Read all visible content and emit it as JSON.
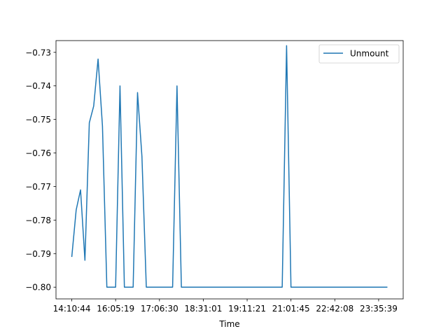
{
  "chart_data": {
    "type": "line",
    "title": "",
    "xlabel": "Time",
    "ylabel": "",
    "x_tick_labels": [
      "14:10:44",
      "16:05:19",
      "17:06:30",
      "18:31:01",
      "19:11:21",
      "21:01:45",
      "22:42:08",
      "23:35:39"
    ],
    "y_ticks": [
      -0.8,
      -0.79,
      -0.78,
      -0.77,
      -0.76,
      -0.75,
      -0.74,
      -0.73
    ],
    "y_tick_labels": [
      "−0.80",
      "−0.79",
      "−0.78",
      "−0.77",
      "−0.76",
      "−0.75",
      "−0.74",
      "−0.73"
    ],
    "ylim": [
      -0.8035,
      -0.7265
    ],
    "xlim": [
      -3.6,
      75.6
    ],
    "grid": false,
    "legend_position": "upper right",
    "series": [
      {
        "name": "Unmount",
        "color": "#1f77b4",
        "x": [
          0,
          1,
          2,
          3,
          4,
          5,
          6,
          7,
          8,
          9,
          10,
          11,
          12,
          13,
          14,
          15,
          16,
          17,
          18,
          19,
          20,
          21,
          22,
          23,
          24,
          25,
          26,
          27,
          28,
          29,
          30,
          31,
          32,
          33,
          34,
          35,
          36,
          37,
          38,
          39,
          40,
          41,
          42,
          43,
          44,
          45,
          46,
          47,
          48,
          49,
          50,
          51,
          52,
          53,
          54,
          55,
          56,
          57,
          58,
          59,
          60,
          61,
          62,
          63,
          64,
          65,
          66,
          67,
          68,
          69,
          70,
          71,
          72
        ],
        "values": [
          -0.791,
          -0.777,
          -0.771,
          -0.792,
          -0.751,
          -0.746,
          -0.732,
          -0.752,
          -0.8,
          -0.8,
          -0.8,
          -0.74,
          -0.8,
          -0.8,
          -0.8,
          -0.742,
          -0.761,
          -0.8,
          -0.8,
          -0.8,
          -0.8,
          -0.8,
          -0.8,
          -0.8,
          -0.74,
          -0.8,
          -0.8,
          -0.8,
          -0.8,
          -0.8,
          -0.8,
          -0.8,
          -0.8,
          -0.8,
          -0.8,
          -0.8,
          -0.8,
          -0.8,
          -0.8,
          -0.8,
          -0.8,
          -0.8,
          -0.8,
          -0.8,
          -0.8,
          -0.8,
          -0.8,
          -0.8,
          -0.8,
          -0.728,
          -0.8,
          -0.8,
          -0.8,
          -0.8,
          -0.8,
          -0.8,
          -0.8,
          -0.8,
          -0.8,
          -0.8,
          -0.8,
          -0.8,
          -0.8,
          -0.8,
          -0.8,
          -0.8,
          -0.8,
          -0.8,
          -0.8,
          -0.8,
          -0.8,
          -0.8,
          -0.8
        ]
      }
    ]
  }
}
